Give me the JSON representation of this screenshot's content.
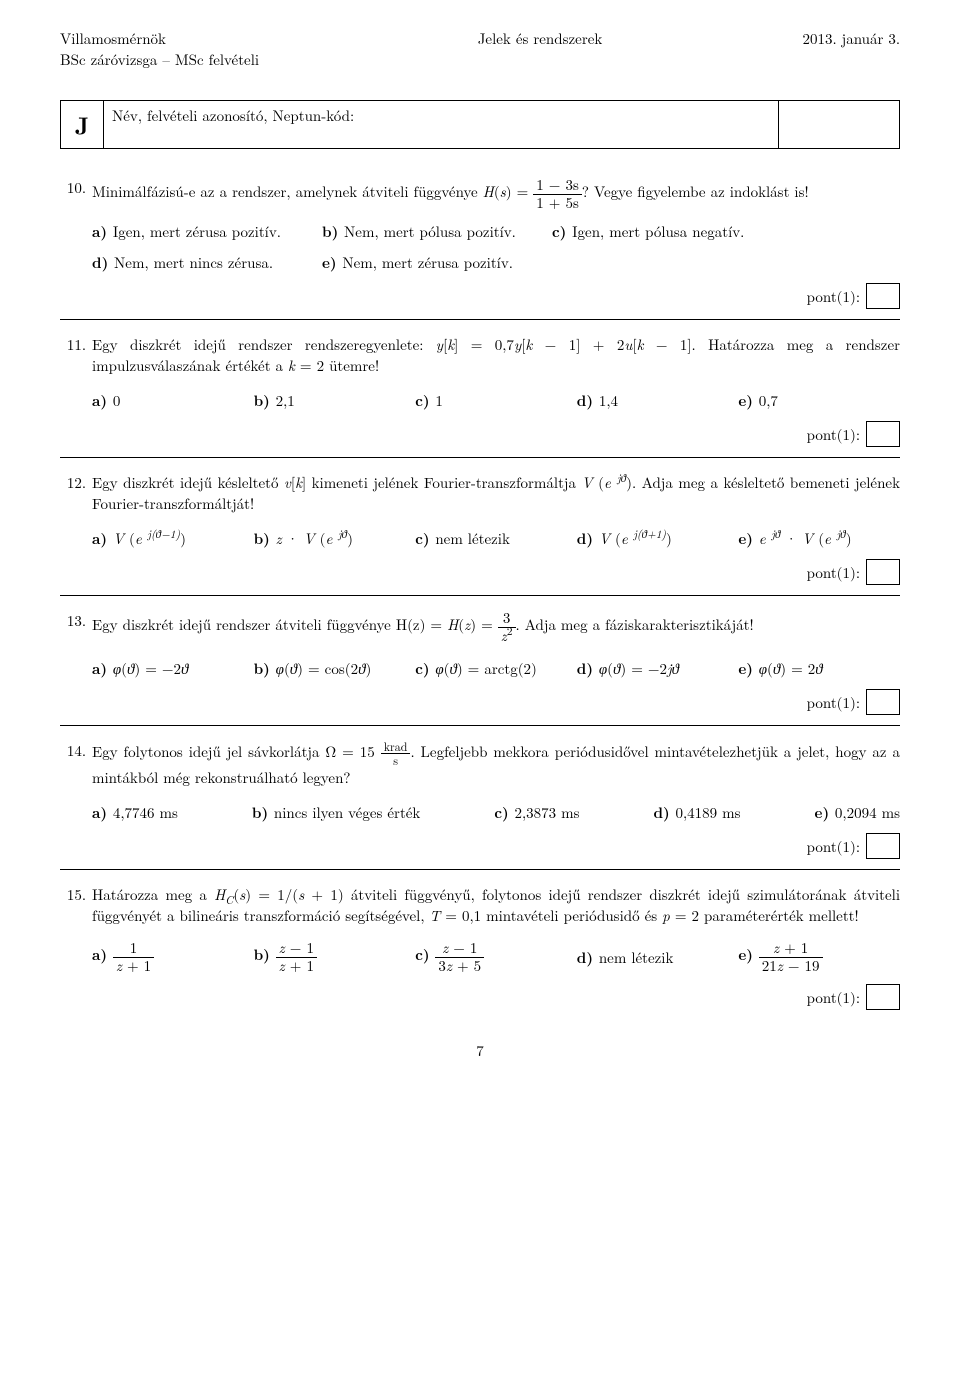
{
  "header": {
    "left": "Villamosmérnök\nBSc záróvizsga – MSc felvételi",
    "center": "Jelek és rendszerek",
    "right": "2013. január 3."
  },
  "idbox": {
    "letter": "J",
    "label": "Név, felvételi azonosító, Neptun-kód:"
  },
  "pont_label": "pont(1):",
  "page_number": "7",
  "questions": [
    {
      "num": "10.",
      "text_prefix": "Minimálfázisú-e az a rendszer, amelynek átviteli függvénye ",
      "frac_num": "1 − 3s",
      "frac_den": "1 + 5s",
      "text_suffix": "? Vegye figyelembe az indoklást is!",
      "opts_row1": {
        "a": "Igen, mert zérusa pozitív.",
        "b": "Nem, mert pólusa pozitív.",
        "c": "Igen, mert pólusa negatív."
      },
      "opts_row2": {
        "d": "Nem, mert nincs zérusa.",
        "e": "Nem, mert zérusa pozitív."
      }
    },
    {
      "num": "11.",
      "text": "Egy diszkrét idejű rendszer rendszeregyenlete: y[k] = 0,7y[k − 1] + 2u[k − 1]. Határozza meg a rendszer impulzusválaszának értékét a k = 2 ütemre!",
      "opts": {
        "a": "0",
        "b": "2,1",
        "c": "1",
        "d": "1,4",
        "e": "0,7"
      }
    },
    {
      "num": "12.",
      "text": "Egy diszkrét idejű késleltető v[k] kimeneti jelének Fourier-transzformáltja V (e^{jϑ}). Adja meg a késleltető bemeneti jelének Fourier-transzformáltját!",
      "opts": {
        "a": "V (e^{j(ϑ−1)})",
        "b": "z · V (e^{jϑ})",
        "c": "nem létezik",
        "d": "V (e^{j(ϑ+1)})",
        "e": "e^{jϑ} · V (e^{jϑ})"
      }
    },
    {
      "num": "13.",
      "text_prefix": "Egy diszkrét idejű rendszer átviteli függvénye H(z) = ",
      "frac_num": "3",
      "frac_den": "z²",
      "text_suffix": ". Adja meg a fáziskarakterisztikáját!",
      "opts": {
        "a": "φ(ϑ) = −2ϑ",
        "b": "φ(ϑ) = cos(2ϑ)",
        "c": "φ(ϑ) = arctg(2)",
        "d": "φ(ϑ) = −2jϑ",
        "e": "φ(ϑ) = 2ϑ"
      }
    },
    {
      "num": "14.",
      "text_prefix": "Egy folytonos idejű jel sávkorlátja Ω = 15",
      "frac_num": "krad",
      "frac_den": "s",
      "text_suffix": ". Legfeljebb mekkora periódusidővel mintavételezhetjük a jelet, hogy az a mintákból még rekonstruálható legyen?",
      "opts": {
        "a": "4,7746 ms",
        "b": "nincs ilyen véges érték",
        "c": "2,3873 ms",
        "d": "0,4189 ms",
        "e": "0,2094 ms"
      }
    },
    {
      "num": "15.",
      "text": "Határozza meg a H_C(s) = 1/(s + 1) átviteli függvényű, folytonos idejű rendszer diszkrét idejű szimulátorának átviteli függvényét a bilineáris transzformáció segítségével, T = 0,1 mintavételi periódusidő és p = 2 paraméterérték mellett!",
      "opts": {
        "a": {
          "num": "1",
          "den": "z + 1"
        },
        "b": {
          "num": "z − 1",
          "den": "z + 1"
        },
        "c": {
          "num": "z − 1",
          "den": "3z + 5"
        },
        "d": "nem létezik",
        "e": {
          "num": "z + 1",
          "den": "21z − 19"
        }
      }
    }
  ]
}
